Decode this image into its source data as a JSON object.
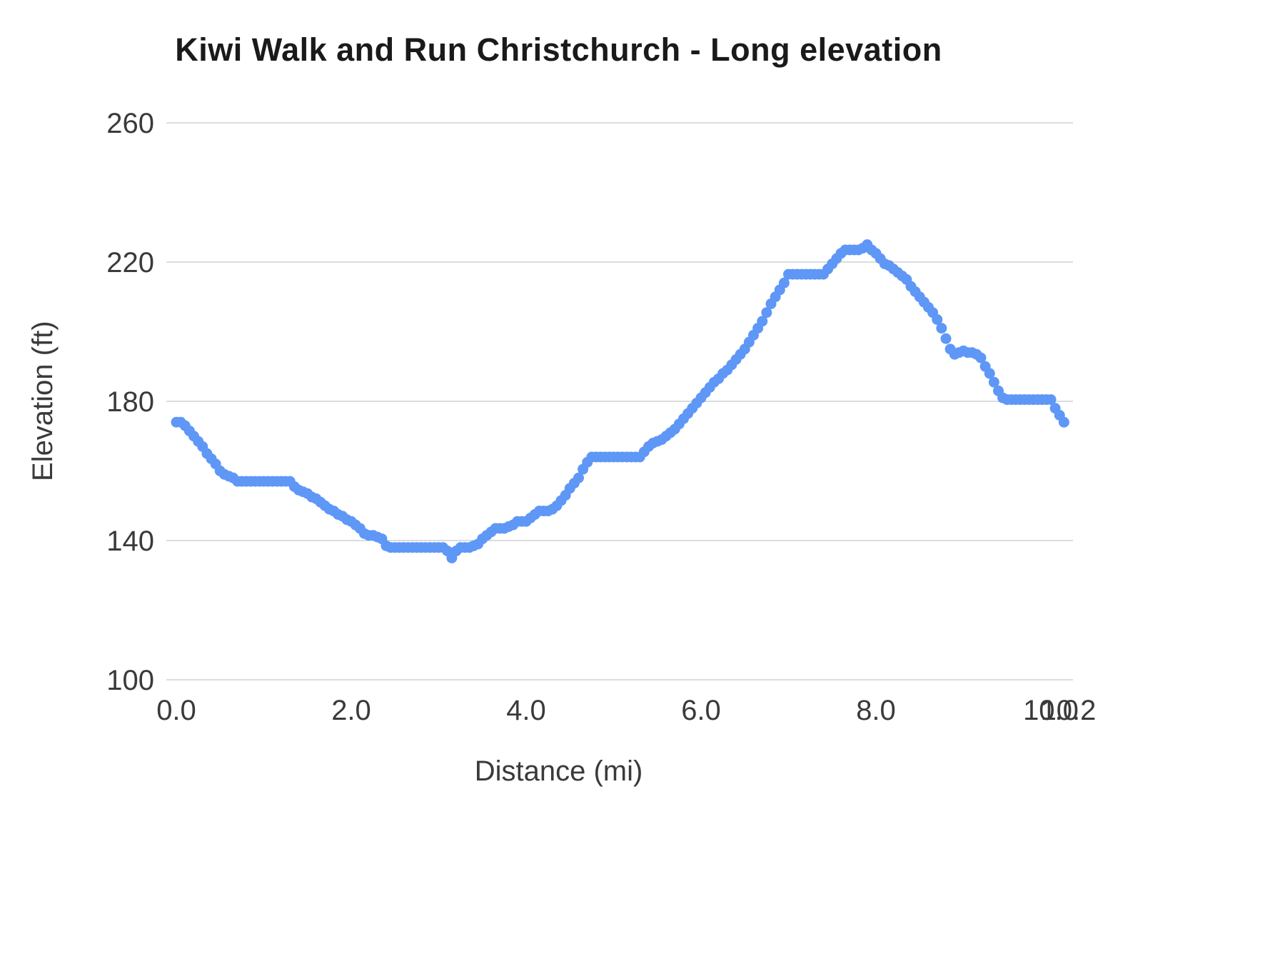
{
  "chart_data": {
    "type": "scatter",
    "title": "Kiwi Walk and Run Christchurch - Long elevation",
    "xlabel": "Distance (mi)",
    "ylabel": "Elevation (ft)",
    "xlim": [
      0,
      10.2
    ],
    "ylim": [
      100,
      260
    ],
    "grid": "horizontal",
    "legend": "none",
    "background_color": "#ffffff",
    "gridline_color": "#dadce0",
    "marker_color": "#5e97f6",
    "x_ticks": [
      {
        "value": 0.0,
        "label": "0.0"
      },
      {
        "value": 2.0,
        "label": "2.0"
      },
      {
        "value": 4.0,
        "label": "4.0"
      },
      {
        "value": 6.0,
        "label": "6.0"
      },
      {
        "value": 8.0,
        "label": "8.0"
      },
      {
        "value": 10.0,
        "label": "10.0"
      },
      {
        "value": 10.2,
        "label": "10.2"
      }
    ],
    "y_ticks": [
      {
        "value": 100,
        "label": "100"
      },
      {
        "value": 140,
        "label": "140"
      },
      {
        "value": 180,
        "label": "180"
      },
      {
        "value": 220,
        "label": "220"
      },
      {
        "value": 260,
        "label": "260"
      }
    ],
    "series": [
      {
        "name": "Elevation",
        "points": [
          [
            0.0,
            174
          ],
          [
            0.05,
            174
          ],
          [
            0.1,
            173
          ],
          [
            0.15,
            171.5
          ],
          [
            0.2,
            170
          ],
          [
            0.25,
            168.5
          ],
          [
            0.3,
            167
          ],
          [
            0.35,
            165
          ],
          [
            0.4,
            163.5
          ],
          [
            0.45,
            162
          ],
          [
            0.5,
            160
          ],
          [
            0.55,
            159
          ],
          [
            0.6,
            158.5
          ],
          [
            0.65,
            158
          ],
          [
            0.7,
            157
          ],
          [
            0.75,
            157
          ],
          [
            0.8,
            157
          ],
          [
            0.85,
            157
          ],
          [
            0.9,
            157
          ],
          [
            0.95,
            157
          ],
          [
            1.0,
            157
          ],
          [
            1.05,
            157
          ],
          [
            1.1,
            157
          ],
          [
            1.15,
            157
          ],
          [
            1.2,
            157
          ],
          [
            1.25,
            157
          ],
          [
            1.3,
            157
          ],
          [
            1.35,
            155.5
          ],
          [
            1.4,
            154.5
          ],
          [
            1.45,
            154
          ],
          [
            1.5,
            153.5
          ],
          [
            1.55,
            152.5
          ],
          [
            1.6,
            152
          ],
          [
            1.65,
            151
          ],
          [
            1.7,
            150
          ],
          [
            1.75,
            149
          ],
          [
            1.8,
            148.5
          ],
          [
            1.85,
            147.5
          ],
          [
            1.9,
            147
          ],
          [
            1.95,
            146
          ],
          [
            2.0,
            145.5
          ],
          [
            2.05,
            144.5
          ],
          [
            2.1,
            143.5
          ],
          [
            2.15,
            142
          ],
          [
            2.2,
            141.5
          ],
          [
            2.25,
            141.5
          ],
          [
            2.3,
            141
          ],
          [
            2.35,
            140.5
          ],
          [
            2.4,
            138.5
          ],
          [
            2.45,
            138
          ],
          [
            2.5,
            138
          ],
          [
            2.55,
            138
          ],
          [
            2.6,
            138
          ],
          [
            2.65,
            138
          ],
          [
            2.7,
            138
          ],
          [
            2.75,
            138
          ],
          [
            2.8,
            138
          ],
          [
            2.85,
            138
          ],
          [
            2.9,
            138
          ],
          [
            2.95,
            138
          ],
          [
            3.0,
            138
          ],
          [
            3.05,
            138
          ],
          [
            3.1,
            137
          ],
          [
            3.15,
            135
          ],
          [
            3.2,
            137
          ],
          [
            3.25,
            138
          ],
          [
            3.3,
            138
          ],
          [
            3.35,
            138
          ],
          [
            3.4,
            138.5
          ],
          [
            3.45,
            139
          ],
          [
            3.5,
            140.5
          ],
          [
            3.55,
            141.5
          ],
          [
            3.6,
            142.5
          ],
          [
            3.65,
            143.5
          ],
          [
            3.7,
            143.5
          ],
          [
            3.75,
            143.5
          ],
          [
            3.8,
            144
          ],
          [
            3.85,
            144.5
          ],
          [
            3.9,
            145.5
          ],
          [
            3.95,
            145.5
          ],
          [
            4.0,
            145.5
          ],
          [
            4.05,
            146.5
          ],
          [
            4.1,
            147.5
          ],
          [
            4.15,
            148.5
          ],
          [
            4.2,
            148.5
          ],
          [
            4.25,
            148.5
          ],
          [
            4.3,
            149
          ],
          [
            4.35,
            150
          ],
          [
            4.4,
            151.5
          ],
          [
            4.45,
            153
          ],
          [
            4.5,
            155
          ],
          [
            4.55,
            156.5
          ],
          [
            4.6,
            158
          ],
          [
            4.65,
            160.5
          ],
          [
            4.7,
            162.5
          ],
          [
            4.75,
            164
          ],
          [
            4.8,
            164
          ],
          [
            4.85,
            164
          ],
          [
            4.9,
            164
          ],
          [
            4.95,
            164
          ],
          [
            5.0,
            164
          ],
          [
            5.05,
            164
          ],
          [
            5.1,
            164
          ],
          [
            5.15,
            164
          ],
          [
            5.2,
            164
          ],
          [
            5.25,
            164
          ],
          [
            5.3,
            164
          ],
          [
            5.35,
            165.5
          ],
          [
            5.4,
            167
          ],
          [
            5.45,
            168
          ],
          [
            5.5,
            168.5
          ],
          [
            5.55,
            169
          ],
          [
            5.6,
            170
          ],
          [
            5.65,
            171
          ],
          [
            5.7,
            172
          ],
          [
            5.75,
            173.5
          ],
          [
            5.8,
            175
          ],
          [
            5.85,
            176.5
          ],
          [
            5.9,
            178
          ],
          [
            5.95,
            179.5
          ],
          [
            6.0,
            181
          ],
          [
            6.05,
            182.5
          ],
          [
            6.1,
            184
          ],
          [
            6.15,
            185.5
          ],
          [
            6.2,
            186.5
          ],
          [
            6.25,
            188
          ],
          [
            6.3,
            189
          ],
          [
            6.35,
            190.5
          ],
          [
            6.4,
            192
          ],
          [
            6.45,
            193.5
          ],
          [
            6.5,
            195
          ],
          [
            6.55,
            197
          ],
          [
            6.6,
            199
          ],
          [
            6.65,
            201
          ],
          [
            6.7,
            203
          ],
          [
            6.75,
            205.5
          ],
          [
            6.8,
            208
          ],
          [
            6.85,
            210
          ],
          [
            6.9,
            212
          ],
          [
            6.95,
            214
          ],
          [
            7.0,
            216.5
          ],
          [
            7.05,
            216.5
          ],
          [
            7.1,
            216.5
          ],
          [
            7.15,
            216.5
          ],
          [
            7.2,
            216.5
          ],
          [
            7.25,
            216.5
          ],
          [
            7.3,
            216.5
          ],
          [
            7.35,
            216.5
          ],
          [
            7.4,
            216.5
          ],
          [
            7.45,
            218
          ],
          [
            7.5,
            219.5
          ],
          [
            7.55,
            221
          ],
          [
            7.6,
            222.5
          ],
          [
            7.65,
            223.5
          ],
          [
            7.7,
            223.5
          ],
          [
            7.75,
            223.5
          ],
          [
            7.8,
            223.5
          ],
          [
            7.85,
            224
          ],
          [
            7.9,
            225
          ],
          [
            7.95,
            223.5
          ],
          [
            8.0,
            222.5
          ],
          [
            8.05,
            221
          ],
          [
            8.1,
            219.5
          ],
          [
            8.15,
            219
          ],
          [
            8.2,
            218
          ],
          [
            8.25,
            217
          ],
          [
            8.3,
            216
          ],
          [
            8.35,
            215
          ],
          [
            8.4,
            213
          ],
          [
            8.45,
            211.5
          ],
          [
            8.5,
            210
          ],
          [
            8.55,
            208.5
          ],
          [
            8.6,
            207
          ],
          [
            8.65,
            205.5
          ],
          [
            8.7,
            203.5
          ],
          [
            8.75,
            201
          ],
          [
            8.8,
            198
          ],
          [
            8.85,
            195
          ],
          [
            8.9,
            193.5
          ],
          [
            8.95,
            194
          ],
          [
            9.0,
            194.5
          ],
          [
            9.05,
            194
          ],
          [
            9.1,
            194
          ],
          [
            9.15,
            193.5
          ],
          [
            9.2,
            192.5
          ],
          [
            9.25,
            190
          ],
          [
            9.3,
            188
          ],
          [
            9.35,
            185.5
          ],
          [
            9.4,
            183
          ],
          [
            9.45,
            181
          ],
          [
            9.5,
            180.5
          ],
          [
            9.55,
            180.5
          ],
          [
            9.6,
            180.5
          ],
          [
            9.65,
            180.5
          ],
          [
            9.7,
            180.5
          ],
          [
            9.75,
            180.5
          ],
          [
            9.8,
            180.5
          ],
          [
            9.85,
            180.5
          ],
          [
            9.9,
            180.5
          ],
          [
            9.95,
            180.5
          ],
          [
            10.0,
            180.5
          ],
          [
            10.05,
            178
          ],
          [
            10.1,
            176
          ],
          [
            10.15,
            174
          ]
        ]
      }
    ]
  }
}
